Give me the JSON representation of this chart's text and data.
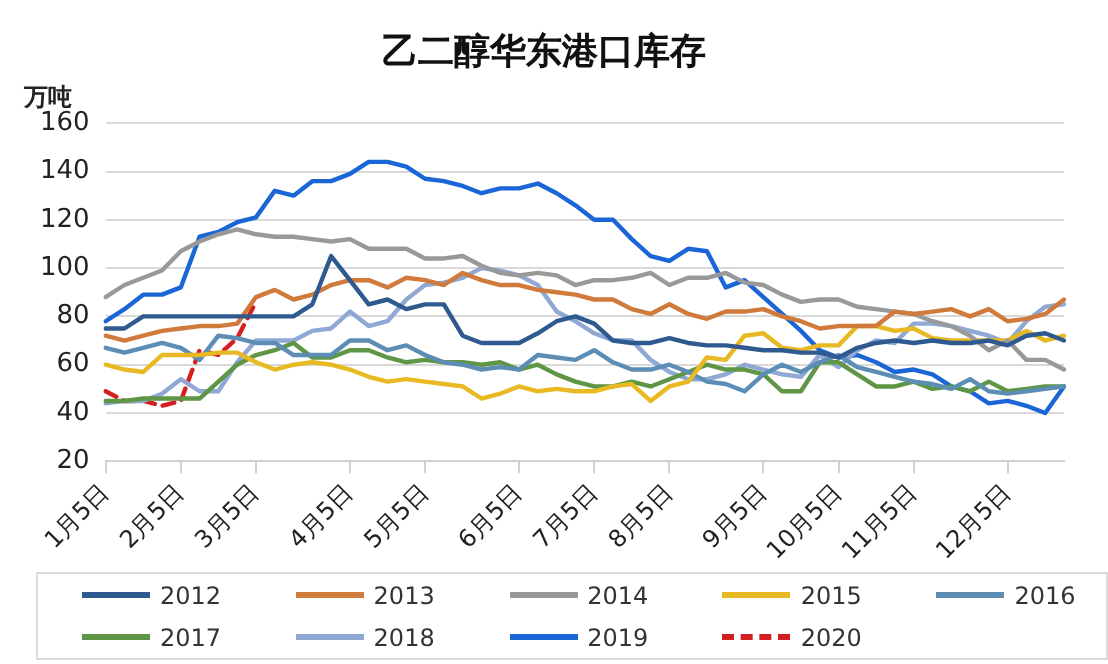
{
  "chart_data": {
    "type": "line",
    "title": "乙二醇华东港口库存",
    "ylabel": "万吨",
    "categories": [
      "1月5日",
      null,
      null,
      null,
      "2月5日",
      null,
      null,
      null,
      "3月5日",
      null,
      null,
      null,
      null,
      "4月5日",
      null,
      null,
      null,
      "5月5日",
      null,
      null,
      null,
      null,
      "6月5日",
      null,
      null,
      null,
      "7月5日",
      null,
      null,
      null,
      "8月5日",
      null,
      null,
      null,
      null,
      "9月5日",
      null,
      null,
      null,
      "10月5日",
      null,
      null,
      null,
      "11月5日",
      null,
      null,
      null,
      null,
      "12月5日",
      null,
      null,
      null
    ],
    "ylim": [
      20,
      160
    ],
    "yticks": [
      20,
      40,
      60,
      80,
      100,
      120,
      140,
      160
    ],
    "grid": "y",
    "legend": "bottom",
    "marker": "none",
    "series": [
      {
        "name": "2012",
        "color": "#2f5a8f",
        "values": [
          75,
          75,
          80,
          80,
          80,
          80,
          80,
          80,
          80,
          80,
          80,
          85,
          105,
          95,
          85,
          87,
          83,
          85,
          85,
          72,
          69,
          69,
          69,
          73,
          78,
          80,
          77,
          70,
          69,
          69,
          71,
          69,
          68,
          68,
          67,
          66,
          66,
          65,
          65,
          63,
          67,
          69,
          70,
          69,
          70,
          69,
          69,
          70,
          68,
          72,
          73,
          70
        ]
      },
      {
        "name": "2013",
        "color": "#d07a3c",
        "values": [
          72,
          70,
          72,
          74,
          75,
          76,
          76,
          77,
          88,
          91,
          87,
          89,
          93,
          95,
          95,
          92,
          96,
          95,
          93,
          98,
          95,
          93,
          93,
          91,
          90,
          89,
          87,
          87,
          83,
          81,
          85,
          81,
          79,
          82,
          82,
          83,
          80,
          78,
          75,
          76,
          76,
          76,
          82,
          81,
          82,
          83,
          80,
          83,
          78,
          79,
          81,
          87
        ]
      },
      {
        "name": "2014",
        "color": "#999999",
        "values": [
          88,
          93,
          96,
          99,
          107,
          111,
          114,
          116,
          114,
          113,
          113,
          112,
          111,
          112,
          108,
          108,
          108,
          104,
          104,
          105,
          101,
          98,
          97,
          98,
          97,
          93,
          95,
          95,
          96,
          98,
          93,
          96,
          96,
          98,
          94,
          93,
          89,
          86,
          87,
          87,
          84,
          83,
          82,
          81,
          78,
          76,
          72,
          66,
          70,
          62,
          62,
          58
        ]
      },
      {
        "name": "2015",
        "color": "#e8b923",
        "values": [
          60,
          58,
          57,
          64,
          64,
          64,
          65,
          65,
          61,
          58,
          60,
          61,
          60,
          58,
          55,
          53,
          54,
          53,
          52,
          51,
          46,
          48,
          51,
          49,
          50,
          49,
          49,
          51,
          52,
          45,
          51,
          53,
          63,
          62,
          72,
          73,
          67,
          66,
          68,
          68,
          76,
          76,
          74,
          75,
          71,
          70,
          70,
          70,
          70,
          74,
          70,
          72
        ]
      },
      {
        "name": "2016",
        "color": "#5b8db5",
        "values": [
          67,
          65,
          67,
          69,
          67,
          62,
          72,
          71,
          69,
          69,
          64,
          64,
          64,
          70,
          70,
          66,
          68,
          64,
          61,
          60,
          58,
          59,
          58,
          64,
          63,
          62,
          66,
          61,
          58,
          58,
          60,
          57,
          53,
          52,
          49,
          56,
          60,
          57,
          61,
          64,
          59,
          57,
          55,
          53,
          52,
          50,
          54,
          49,
          48,
          49,
          50,
          51
        ]
      },
      {
        "name": "2017",
        "color": "#5f9645",
        "values": [
          45,
          45,
          46,
          46,
          46,
          46,
          53,
          60,
          64,
          66,
          69,
          63,
          63,
          66,
          66,
          63,
          61,
          62,
          61,
          61,
          60,
          61,
          58,
          60,
          56,
          53,
          51,
          51,
          53,
          51,
          54,
          57,
          60,
          58,
          58,
          56,
          49,
          49,
          61,
          61,
          56,
          51,
          51,
          53,
          50,
          51,
          49,
          53,
          49,
          50,
          51,
          51
        ]
      },
      {
        "name": "2018",
        "color": "#8fa8d4",
        "values": [
          44,
          45,
          45,
          48,
          54,
          49,
          49,
          61,
          70,
          70,
          70,
          74,
          75,
          82,
          76,
          78,
          87,
          93,
          94,
          96,
          100,
          99,
          97,
          93,
          82,
          78,
          73,
          70,
          70,
          62,
          57,
          54,
          54,
          56,
          60,
          58,
          56,
          55,
          64,
          59,
          66,
          70,
          69,
          77,
          77,
          76,
          74,
          72,
          69,
          78,
          84,
          85
        ]
      },
      {
        "name": "2019",
        "color": "#1a66d6",
        "values": [
          78,
          83,
          89,
          89,
          92,
          113,
          115,
          119,
          121,
          132,
          130,
          136,
          136,
          139,
          144,
          144,
          142,
          137,
          136,
          134,
          131,
          133,
          133,
          135,
          131,
          126,
          120,
          120,
          112,
          105,
          103,
          108,
          107,
          92,
          95,
          88,
          81,
          74,
          66,
          63,
          64,
          61,
          57,
          58,
          56,
          51,
          49,
          44,
          45,
          43,
          40,
          51
        ]
      },
      {
        "name": "2020",
        "color": "#d42020",
        "line_style": "dashed",
        "values": [
          49,
          45,
          45,
          43,
          45,
          66,
          64,
          71,
          86,
          null,
          null,
          null,
          null,
          null,
          null,
          null,
          null,
          null,
          null,
          null,
          null,
          null,
          null,
          null,
          null,
          null,
          null,
          null,
          null,
          null,
          null,
          null,
          null,
          null,
          null,
          null,
          null,
          null,
          null,
          null,
          null,
          null,
          null,
          null,
          null,
          null,
          null,
          null,
          null,
          null,
          null,
          null
        ]
      }
    ]
  }
}
